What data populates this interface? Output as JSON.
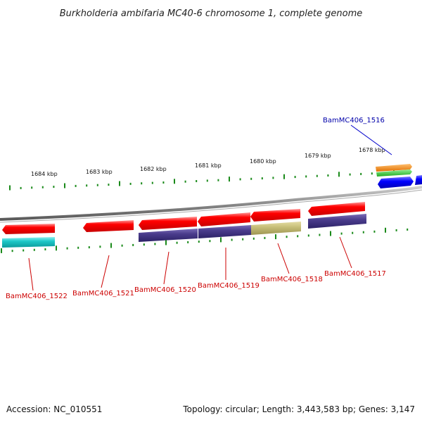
{
  "title": "Burkholderia ambifaria MC40-6 chromosome 1, complete genome",
  "scale_labels": [
    "1684 kbp",
    "1683 kbp",
    "1682 kbp",
    "1681 kbp",
    "1680 kbp",
    "1679 kbp",
    "1678 kbp"
  ],
  "gene_labels": {
    "g1516": "BamMC406_1516",
    "g1517": "BamMC406_1517",
    "g1518": "BamMC406_1518",
    "g1519": "BamMC406_1519",
    "g1520": "BamMC406_1520",
    "g1521": "BamMC406_1521",
    "g1522": "BamMC406_1522"
  },
  "footer": {
    "accession": "Accession: NC_010551",
    "topology": "Topology: circular; Length: 3,443,583 bp; Genes: 3,147"
  },
  "colors": {
    "forward_strand": "#ff0000",
    "cog_navy": "#4a3c8c",
    "cog_khaki": "#c8c07a",
    "cog_cyan": "#1ec8c8",
    "cog_orange": "#ff8800",
    "cog_green": "#33cc33",
    "reverse_strand": "#0000ff",
    "backbone": "#999999",
    "tick_green": "#1a8a1a"
  }
}
